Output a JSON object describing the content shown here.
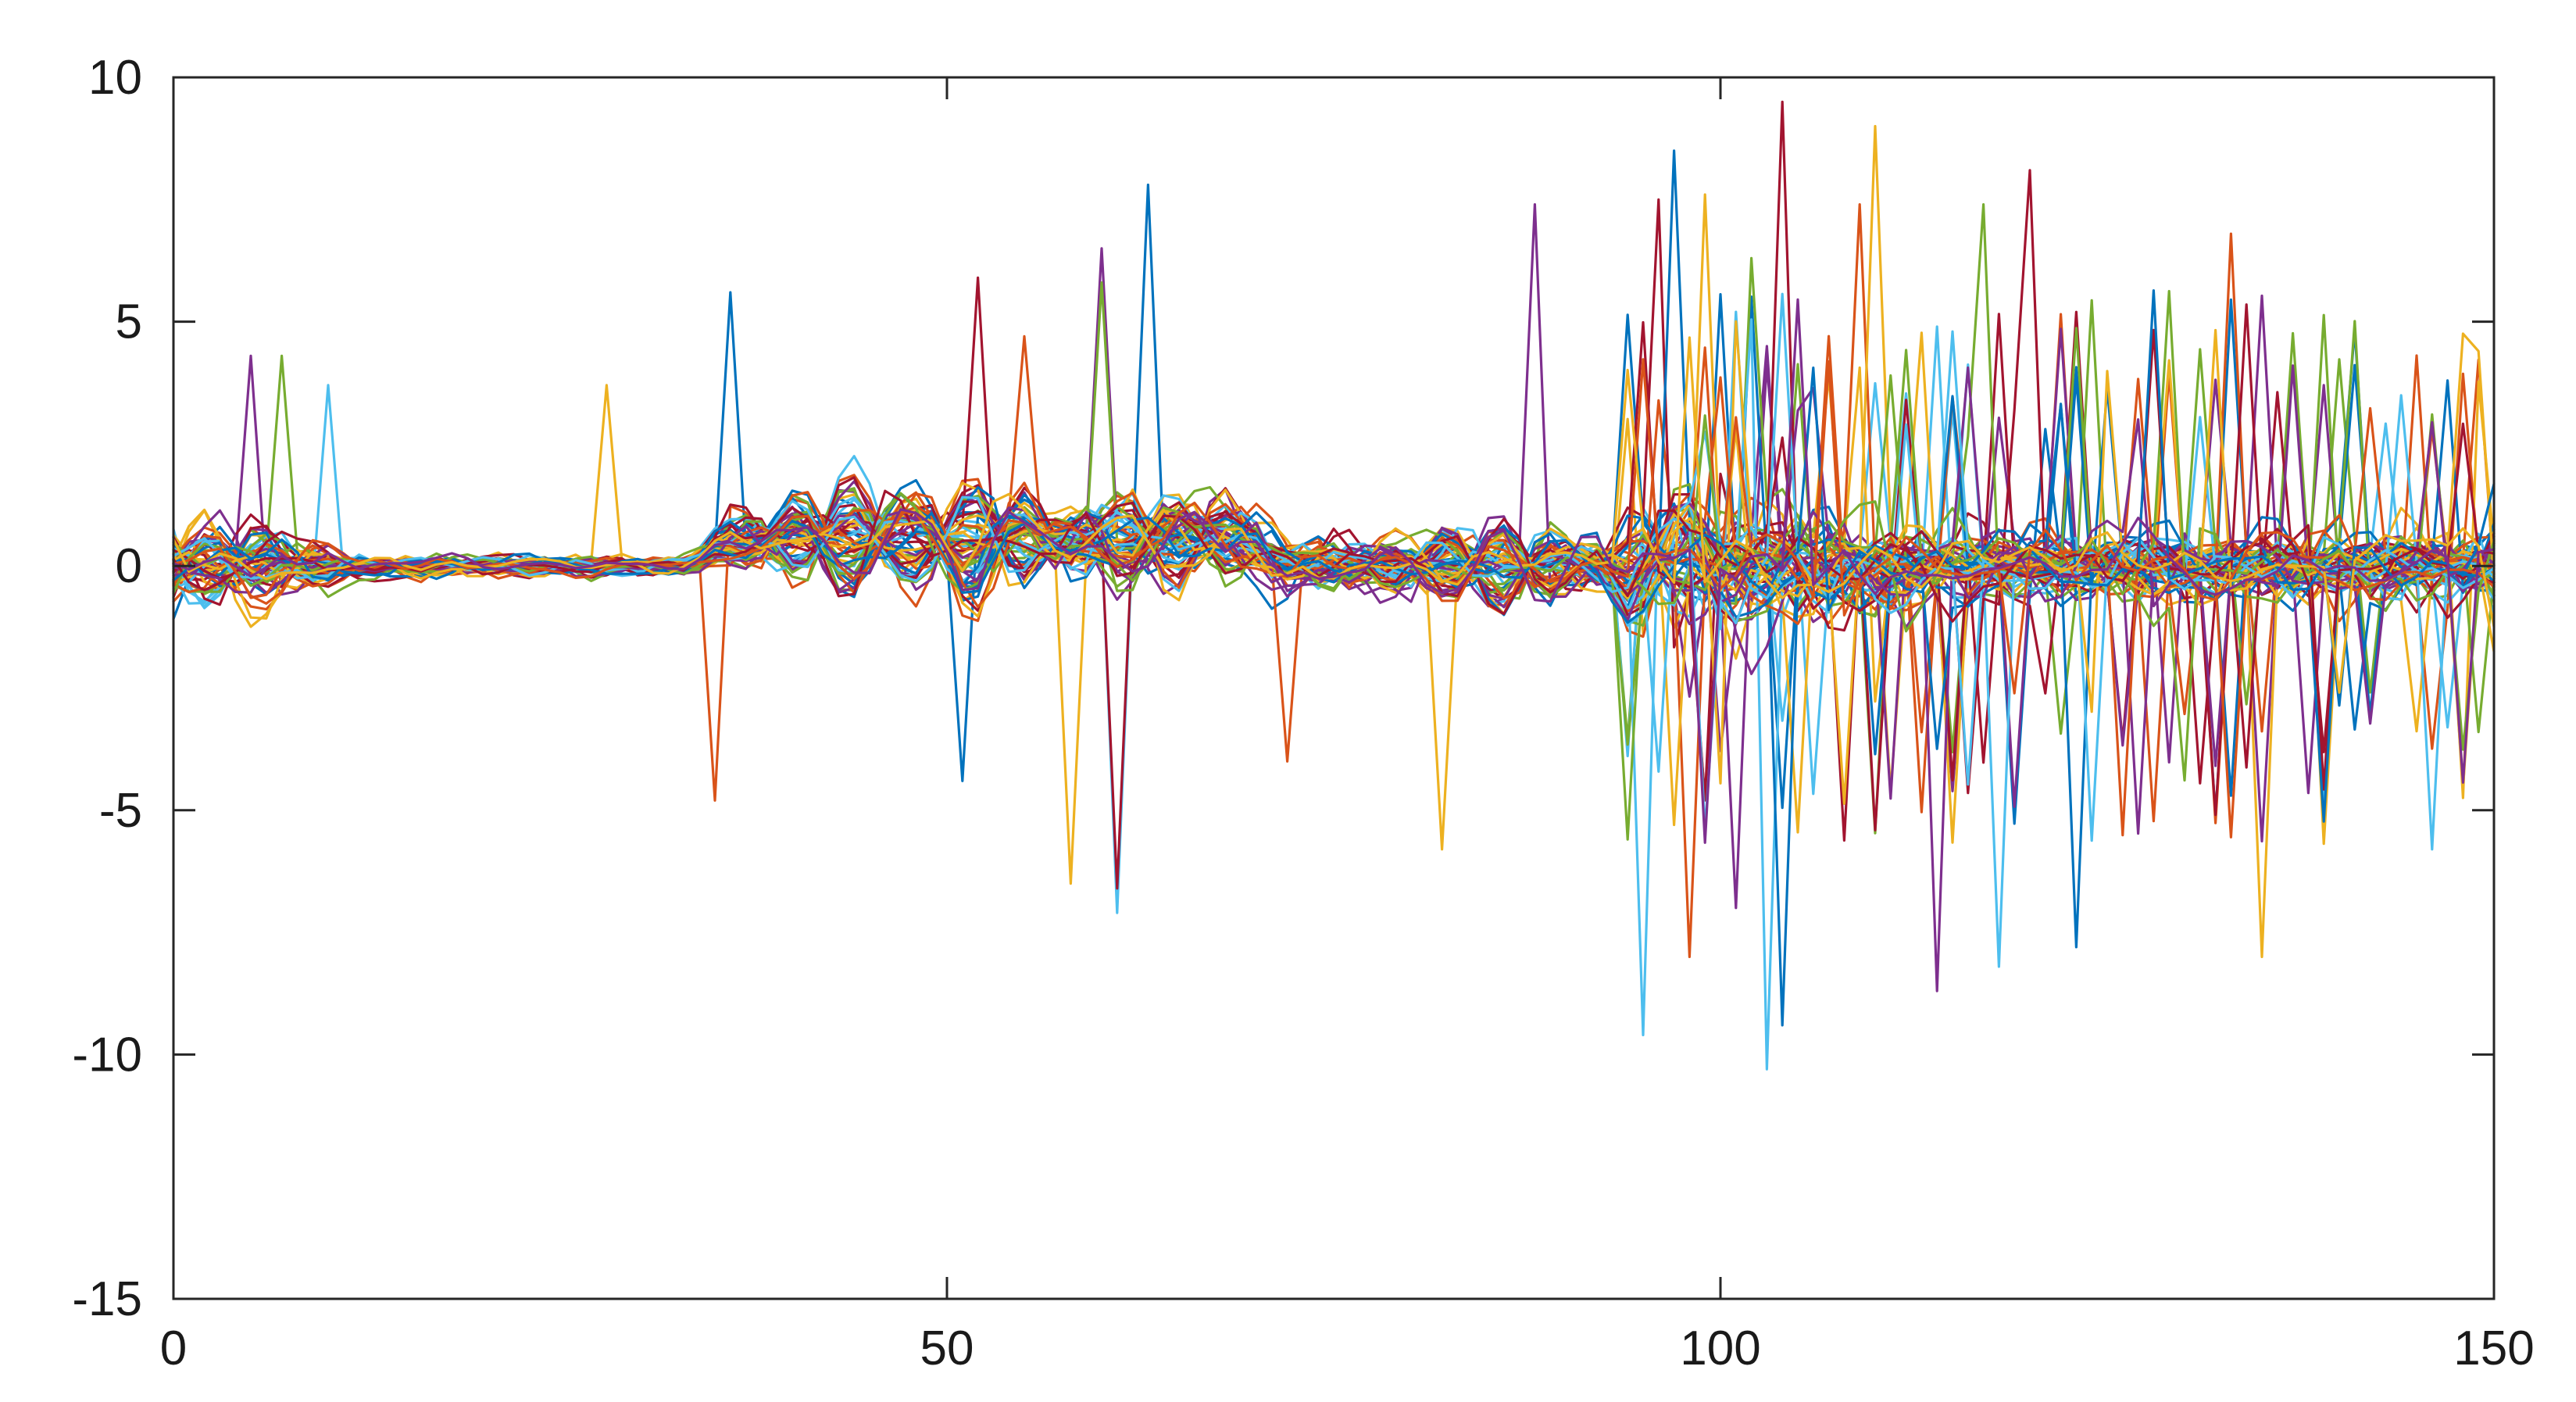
{
  "chart_data": {
    "type": "line",
    "title": "",
    "xlabel": "",
    "ylabel": "",
    "xlim": [
      0,
      150
    ],
    "ylim": [
      -15,
      10
    ],
    "x_ticks": [
      0,
      50,
      100,
      150
    ],
    "y_ticks": [
      10,
      5,
      0,
      -5,
      -10,
      -15
    ],
    "x_tick_labels": [
      "0",
      "50",
      "100",
      "150"
    ],
    "y_tick_labels": [
      "10",
      "5",
      "0",
      "-5",
      "-10",
      "-15"
    ],
    "grid": false,
    "legend": "none",
    "n_series": 60,
    "x": [
      0,
      1,
      2,
      3,
      4,
      5,
      6,
      7,
      8,
      9,
      10,
      11,
      12,
      13,
      14,
      15,
      16,
      17,
      18,
      19,
      20,
      21,
      22,
      23,
      24,
      25,
      26,
      27,
      28,
      29,
      30,
      31,
      32,
      33,
      34,
      35,
      36,
      37,
      38,
      39,
      40,
      41,
      42,
      43,
      44,
      45,
      46,
      47,
      48,
      49,
      50,
      51,
      52,
      53,
      54,
      55,
      56,
      57,
      58,
      59,
      60,
      61,
      62,
      63,
      64,
      65,
      66,
      67,
      68,
      69,
      70,
      71,
      72,
      73,
      74,
      75,
      76,
      77,
      78,
      79,
      80,
      81,
      82,
      83,
      84,
      85,
      86,
      87,
      88,
      89,
      90,
      91,
      92,
      93,
      94,
      95,
      96,
      97,
      98,
      99,
      100,
      101,
      102,
      103,
      104,
      105,
      106,
      107,
      108,
      109,
      110,
      111,
      112,
      113,
      114,
      115,
      116,
      117,
      118,
      119,
      120,
      121,
      122,
      123,
      124,
      125,
      126,
      127,
      128,
      129,
      130,
      131,
      132,
      133,
      134,
      135,
      136,
      137,
      138,
      139,
      140,
      141,
      142,
      143,
      144,
      145,
      146,
      147,
      148,
      149,
      150
    ],
    "colors": [
      "#0072BD",
      "#D95319",
      "#EDB120",
      "#7E2F8E",
      "#77AC30",
      "#4DBEEE",
      "#A2142F"
    ],
    "features": {
      "base_noise": [
        {
          "x_range": [
            0,
            10
          ],
          "amplitude": 0.9
        },
        {
          "x_range": [
            10,
            35
          ],
          "amplitude": 0.35
        },
        {
          "x_range": [
            35,
            55
          ],
          "amplitude": 0.9
        },
        {
          "x_range": [
            55,
            75
          ],
          "amplitude": 1.1
        },
        {
          "x_range": [
            75,
            93
          ],
          "amplitude": 0.8
        },
        {
          "x_range": [
            93,
            112
          ],
          "amplitude": 1.9
        },
        {
          "x_range": [
            112,
            150
          ],
          "amplitude": 1.2
        }
      ],
      "smooth_waves": [
        {
          "center": 4,
          "width": 4,
          "amplitude": 0.9
        },
        {
          "center": 43,
          "width": 5,
          "amplitude": 1.2
        },
        {
          "center": 52,
          "width": 5,
          "amplitude": 1.3
        },
        {
          "center": 63,
          "width": 6,
          "amplitude": 1.1
        },
        {
          "center": 85,
          "width": 6,
          "amplitude": 0.9
        },
        {
          "center": 98,
          "width": 5,
          "amplitude": 1.4
        }
      ],
      "spikes": [
        {
          "x": 36,
          "y": 5.6
        },
        {
          "x": 35,
          "y": -4.8
        },
        {
          "x": 28,
          "y": 3.7
        },
        {
          "x": 5,
          "y": 4.3
        },
        {
          "x": 7,
          "y": 4.3
        },
        {
          "x": 10,
          "y": 3.7
        },
        {
          "x": 52,
          "y": 5.9
        },
        {
          "x": 51,
          "y": -4.4
        },
        {
          "x": 55,
          "y": 4.7
        },
        {
          "x": 58,
          "y": -6.5
        },
        {
          "x": 60,
          "y": 6.5
        },
        {
          "x": 60,
          "y": 5.8
        },
        {
          "x": 61,
          "y": -7.1
        },
        {
          "x": 61,
          "y": -6.6
        },
        {
          "x": 63,
          "y": 7.8
        },
        {
          "x": 72,
          "y": -4.0
        },
        {
          "x": 82,
          "y": -5.8
        },
        {
          "x": 88,
          "y": 7.4
        },
        {
          "x": 94,
          "y": -8.0
        },
        {
          "x": 95,
          "y": -9.6
        },
        {
          "x": 96,
          "y": 7.5
        },
        {
          "x": 97,
          "y": 8.5
        },
        {
          "x": 98,
          "y": -8.0
        },
        {
          "x": 99,
          "y": 7.6
        },
        {
          "x": 101,
          "y": -7.0
        },
        {
          "x": 102,
          "y": 6.3
        },
        {
          "x": 103,
          "y": -10.3
        },
        {
          "x": 104,
          "y": 9.5
        },
        {
          "x": 104,
          "y": -9.4
        },
        {
          "x": 109,
          "y": 7.4
        },
        {
          "x": 110,
          "y": 9.0
        },
        {
          "x": 114,
          "y": -8.7
        },
        {
          "x": 117,
          "y": 7.4
        },
        {
          "x": 118,
          "y": -8.2
        },
        {
          "x": 120,
          "y": 8.1
        },
        {
          "x": 123,
          "y": -7.8
        },
        {
          "x": 133,
          "y": 6.8
        },
        {
          "x": 135,
          "y": -8.0
        },
        {
          "x": 137,
          "y": 4.1
        },
        {
          "x": 146,
          "y": 3.1
        },
        {
          "x": 146,
          "y": -5.8
        }
      ]
    }
  }
}
